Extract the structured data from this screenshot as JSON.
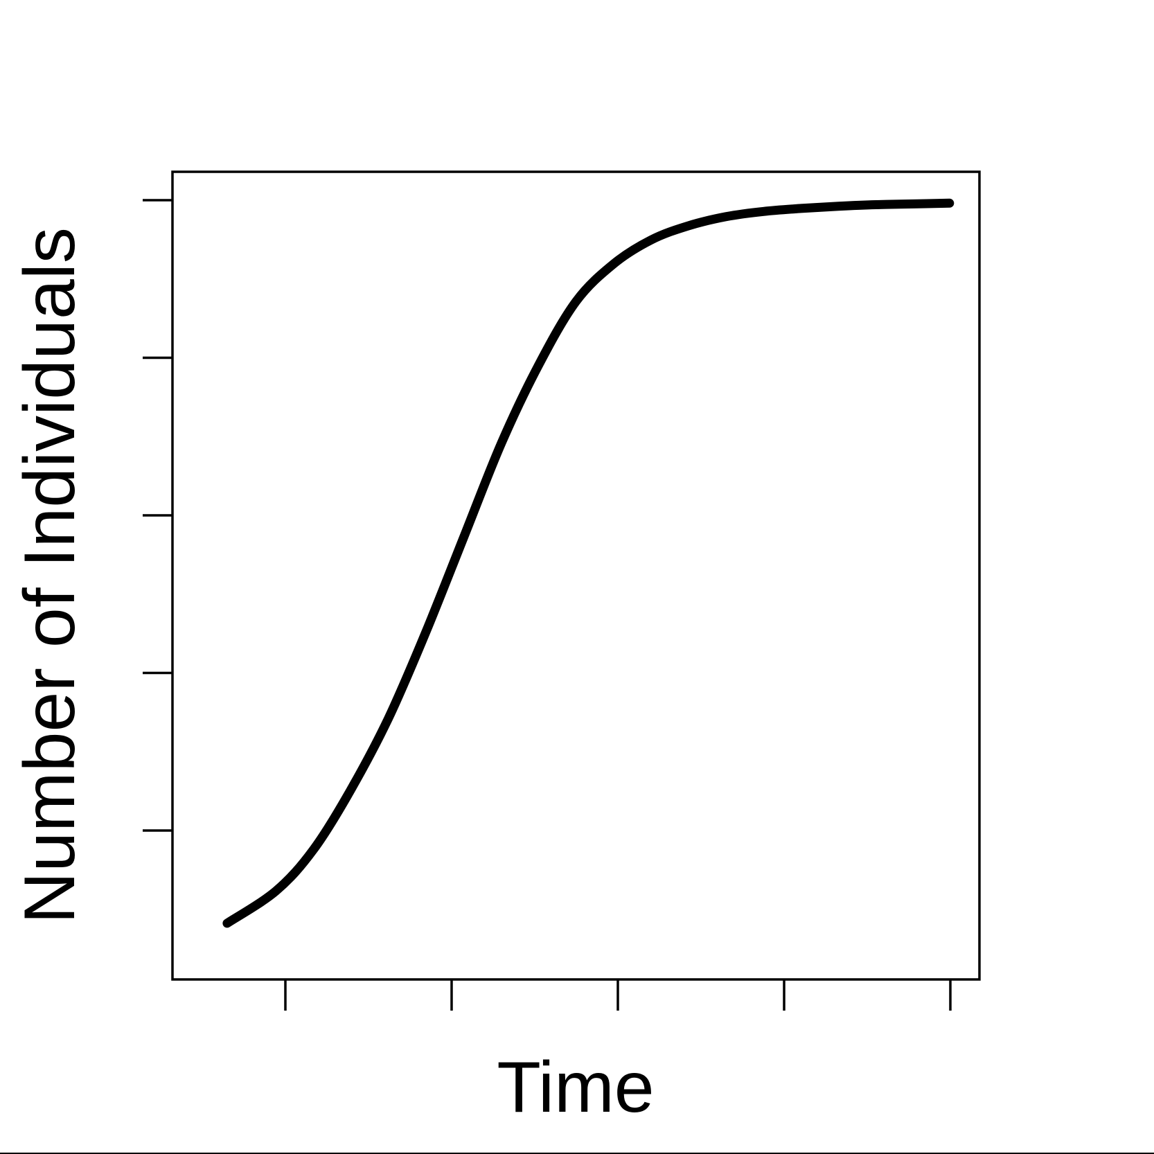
{
  "chart_data": {
    "type": "line",
    "title": "",
    "xlabel": "Time",
    "ylabel": "Number of Individuals",
    "xlim": [
      0,
      1
    ],
    "ylim": [
      0,
      1
    ],
    "x_tick_count": 5,
    "y_tick_count": 5,
    "x_ticks_labeled": false,
    "y_ticks_labeled": false,
    "grid": false,
    "legend": "none",
    "line_color": "#000000",
    "series": [
      {
        "x": [
          0.035,
          0.1,
          0.15,
          0.2,
          0.25,
          0.3,
          0.35,
          0.4,
          0.45,
          0.5,
          0.55,
          0.6,
          0.65,
          0.7,
          0.75,
          0.8,
          0.85,
          0.9,
          0.95,
          0.998
        ],
        "y": [
          0.037,
          0.08,
          0.135,
          0.215,
          0.31,
          0.425,
          0.55,
          0.675,
          0.78,
          0.865,
          0.915,
          0.947,
          0.966,
          0.978,
          0.985,
          0.989,
          0.992,
          0.994,
          0.995,
          0.996
        ]
      }
    ]
  }
}
